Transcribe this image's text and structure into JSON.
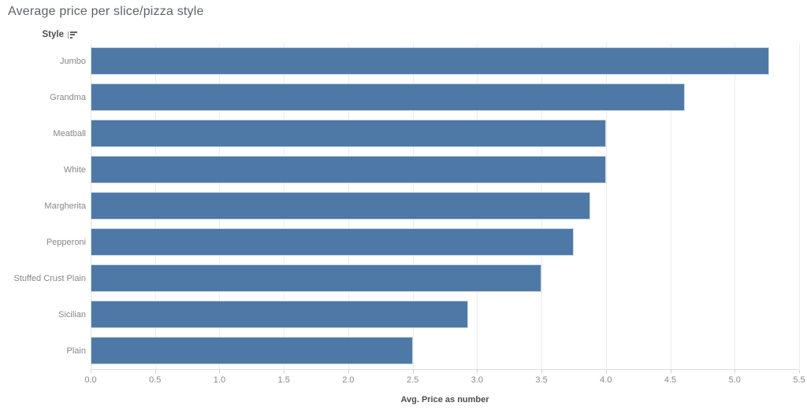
{
  "header": {
    "field_label": "Style",
    "sort_state": "descending"
  },
  "chart_data": {
    "type": "bar",
    "orientation": "horizontal",
    "title": "Average price per slice/pizza style",
    "categories": [
      "Jumbo",
      "Grandma",
      "Meatball",
      "White",
      "Margherita",
      "Pepperoni",
      "Stuffed Crust Plain",
      "Sicilian",
      "Plain"
    ],
    "values": [
      5.27,
      4.61,
      4.0,
      4.0,
      3.88,
      3.75,
      3.5,
      2.93,
      2.5
    ],
    "xlabel": "Avg. Price as number",
    "ylabel": "Style",
    "xlim": [
      0,
      5.5
    ],
    "xticks": [
      "0.0",
      "0.5",
      "1.0",
      "1.5",
      "2.0",
      "2.5",
      "3.0",
      "3.5",
      "4.0",
      "4.5",
      "5.0",
      "5.5"
    ],
    "grid": true,
    "legend": false,
    "bar_color": "#4e79a7",
    "bar_border_color": "#c9d7e6",
    "gridline_color": "#ececec",
    "tick_label_color": "#8a8a8a",
    "category_label_color": "#878787",
    "title_color": "#5f6368",
    "axis_title_color": "#4e4e4e"
  }
}
